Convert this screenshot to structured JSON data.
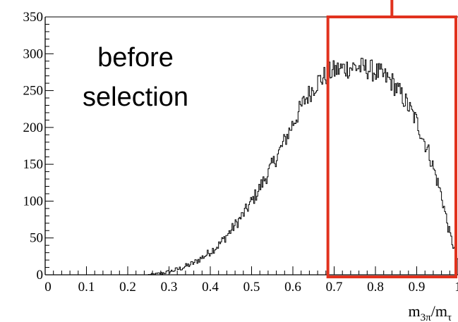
{
  "chart_data": {
    "type": "histogram",
    "title": "",
    "xlabel": "m_{3π}/m_τ",
    "ylabel": "",
    "xlim": [
      0,
      1.0
    ],
    "ylim": [
      0,
      350
    ],
    "x_ticks": [
      "0",
      "0.1",
      "0.2",
      "0.3",
      "0.4",
      "0.5",
      "0.6",
      "0.7",
      "0.8",
      "0.9",
      "1"
    ],
    "y_ticks": [
      "0",
      "50",
      "100",
      "150",
      "200",
      "250",
      "300",
      "350"
    ],
    "bin_width": 0.0025,
    "envelope": [
      {
        "x": 0.25,
        "y": 0
      },
      {
        "x": 0.27,
        "y": 1
      },
      {
        "x": 0.3,
        "y": 4
      },
      {
        "x": 0.33,
        "y": 9
      },
      {
        "x": 0.36,
        "y": 16
      },
      {
        "x": 0.39,
        "y": 27
      },
      {
        "x": 0.42,
        "y": 40
      },
      {
        "x": 0.45,
        "y": 60
      },
      {
        "x": 0.48,
        "y": 82
      },
      {
        "x": 0.51,
        "y": 108
      },
      {
        "x": 0.54,
        "y": 138
      },
      {
        "x": 0.57,
        "y": 170
      },
      {
        "x": 0.6,
        "y": 205
      },
      {
        "x": 0.63,
        "y": 238
      },
      {
        "x": 0.66,
        "y": 262
      },
      {
        "x": 0.69,
        "y": 275
      },
      {
        "x": 0.72,
        "y": 280
      },
      {
        "x": 0.75,
        "y": 282
      },
      {
        "x": 0.78,
        "y": 280
      },
      {
        "x": 0.81,
        "y": 273
      },
      {
        "x": 0.84,
        "y": 262
      },
      {
        "x": 0.87,
        "y": 238
      },
      {
        "x": 0.9,
        "y": 208
      },
      {
        "x": 0.93,
        "y": 165
      },
      {
        "x": 0.96,
        "y": 108
      },
      {
        "x": 0.98,
        "y": 55
      },
      {
        "x": 1.0,
        "y": 20
      }
    ],
    "noise_amplitude": 14,
    "annotation": {
      "line1": "before",
      "line2": "selection"
    },
    "highlight_region": {
      "x_from": 0.69,
      "x_to": 1.0,
      "color": "#e1321e"
    }
  }
}
